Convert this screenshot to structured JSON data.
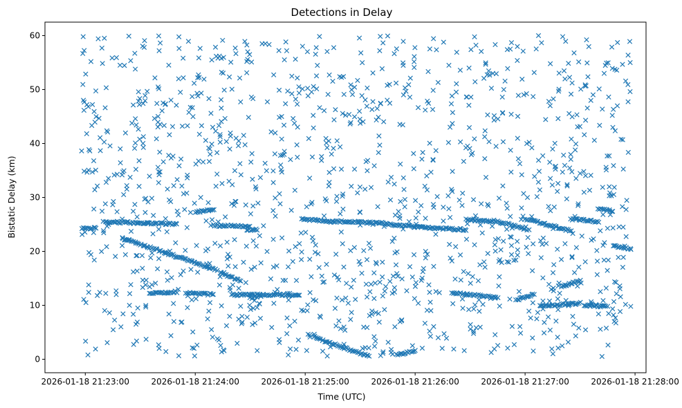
{
  "chart_data": {
    "type": "scatter",
    "title": "Detections in Delay",
    "xlabel": "Time (UTC)",
    "ylabel": "Bistatic Delay (km)",
    "marker": "x",
    "color": "#1f77b4",
    "grid": false,
    "xlim": [
      "2026-01-18 21:22:38",
      "2026-01-18 21:28:06"
    ],
    "ylim": [
      -2.5,
      62.5
    ],
    "xticks": [
      "2026-01-18 21:23:00",
      "2026-01-18 21:24:00",
      "2026-01-18 21:25:00",
      "2026-01-18 21:26:00",
      "2026-01-18 21:27:00",
      "2026-01-18 21:28:00"
    ],
    "yticks": [
      0,
      10,
      20,
      30,
      40,
      50,
      60
    ],
    "tracks": [
      {
        "t": [
          "2026-01-18 21:22:58",
          "2026-01-18 21:23:06"
        ],
        "y": [
          24.3,
          24.3
        ]
      },
      {
        "t": [
          "2026-01-18 21:23:10",
          "2026-01-18 21:23:50"
        ],
        "y": [
          25.5,
          25.0
        ]
      },
      {
        "t": [
          "2026-01-18 21:23:20",
          "2026-01-18 21:24:12"
        ],
        "y": [
          22.5,
          16.5
        ]
      },
      {
        "t": [
          "2026-01-18 21:23:35",
          "2026-01-18 21:23:50"
        ],
        "y": [
          12.3,
          12.5
        ]
      },
      {
        "t": [
          "2026-01-18 21:23:55",
          "2026-01-18 21:24:10"
        ],
        "y": [
          12.3,
          12.0
        ]
      },
      {
        "t": [
          "2026-01-18 21:24:00",
          "2026-01-18 21:24:10"
        ],
        "y": [
          27.3,
          27.7
        ]
      },
      {
        "t": [
          "2026-01-18 21:24:10",
          "2026-01-18 21:24:30"
        ],
        "y": [
          24.8,
          24.6
        ]
      },
      {
        "t": [
          "2026-01-18 21:24:14",
          "2026-01-18 21:24:25"
        ],
        "y": [
          16.0,
          14.5
        ]
      },
      {
        "t": [
          "2026-01-18 21:24:20",
          "2026-01-18 21:24:57"
        ],
        "y": [
          12.0,
          11.9
        ]
      },
      {
        "t": [
          "2026-01-18 21:24:28",
          "2026-01-18 21:24:34"
        ],
        "y": [
          24.0,
          24.0
        ]
      },
      {
        "t": [
          "2026-01-18 21:24:30",
          "2026-01-18 21:24:36"
        ],
        "y": [
          11.3,
          11.8
        ]
      },
      {
        "t": [
          "2026-01-18 21:24:58",
          "2026-01-18 21:25:15"
        ],
        "y": [
          26.0,
          25.5
        ]
      },
      {
        "t": [
          "2026-01-18 21:25:15",
          "2026-01-18 21:25:45"
        ],
        "y": [
          25.6,
          25.2
        ]
      },
      {
        "t": [
          "2026-01-18 21:25:45",
          "2026-01-18 21:26:00"
        ],
        "y": [
          25.0,
          24.6
        ]
      },
      {
        "t": [
          "2026-01-18 21:26:00",
          "2026-01-18 21:26:28"
        ],
        "y": [
          24.5,
          24.0
        ]
      },
      {
        "t": [
          "2026-01-18 21:26:28",
          "2026-01-18 21:26:42"
        ],
        "y": [
          26.0,
          25.5
        ]
      },
      {
        "t": [
          "2026-01-18 21:26:42",
          "2026-01-18 21:27:00"
        ],
        "y": [
          25.8,
          24.2
        ]
      },
      {
        "t": [
          "2026-01-18 21:27:00",
          "2026-01-18 21:27:25"
        ],
        "y": [
          26.0,
          23.8
        ]
      },
      {
        "t": [
          "2026-01-18 21:27:25",
          "2026-01-18 21:27:40"
        ],
        "y": [
          26.0,
          25.5
        ]
      },
      {
        "t": [
          "2026-01-18 21:27:40",
          "2026-01-18 21:27:48"
        ],
        "y": [
          28.0,
          27.5
        ]
      },
      {
        "t": [
          "2026-01-18 21:27:48",
          "2026-01-18 21:27:58"
        ],
        "y": [
          21.0,
          20.5
        ]
      },
      {
        "t": [
          "2026-01-18 21:25:05",
          "2026-01-18 21:25:35"
        ],
        "y": [
          4.0,
          0.5
        ]
      },
      {
        "t": [
          "2026-01-18 21:25:50",
          "2026-01-18 21:26:00"
        ],
        "y": [
          0.8,
          1.5
        ]
      },
      {
        "t": [
          "2026-01-18 21:26:20",
          "2026-01-18 21:26:45"
        ],
        "y": [
          12.3,
          11.5
        ]
      },
      {
        "t": [
          "2026-01-18 21:26:55",
          "2026-01-18 21:27:05"
        ],
        "y": [
          11.0,
          12.0
        ]
      },
      {
        "t": [
          "2026-01-18 21:27:08",
          "2026-01-18 21:27:30"
        ],
        "y": [
          9.8,
          10.4
        ]
      },
      {
        "t": [
          "2026-01-18 21:27:32",
          "2026-01-18 21:27:45"
        ],
        "y": [
          10.0,
          9.8
        ]
      },
      {
        "t": [
          "2026-01-18 21:27:20",
          "2026-01-18 21:27:30"
        ],
        "y": [
          13.5,
          14.5
        ]
      }
    ],
    "noise": {
      "t_range": [
        "2026-01-18 21:22:58",
        "2026-01-18 21:27:58"
      ],
      "y_range": [
        0.5,
        60
      ],
      "approx_count": 1300
    }
  }
}
